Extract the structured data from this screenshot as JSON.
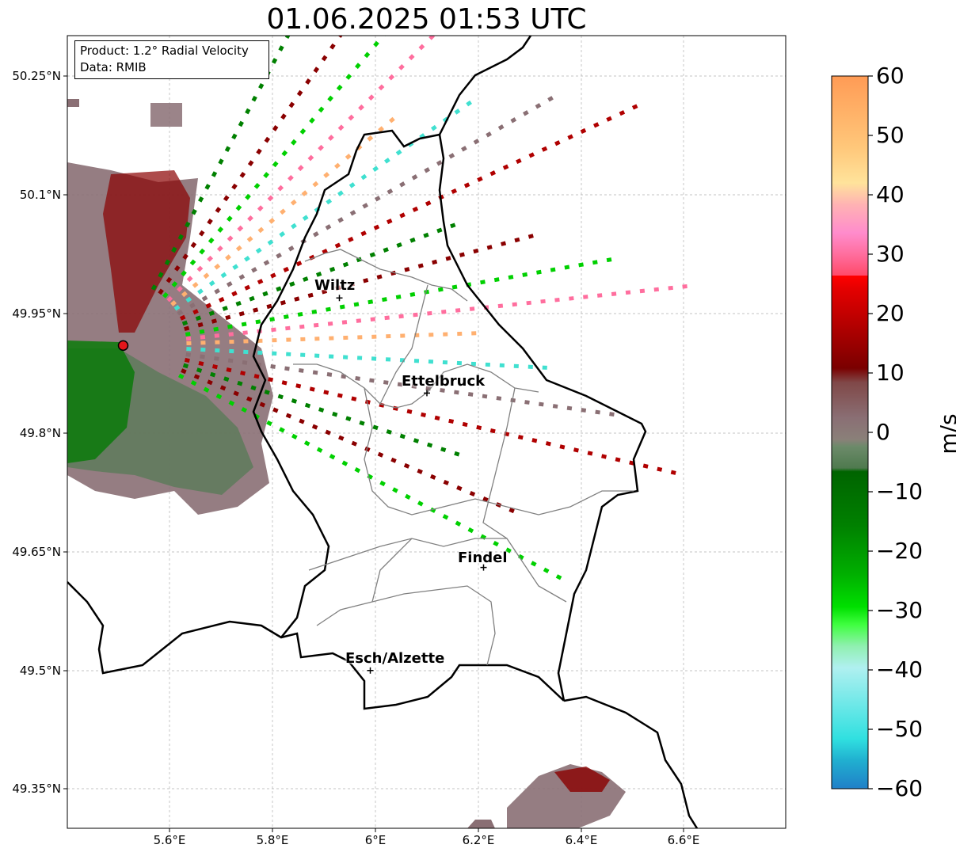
{
  "title": "01.06.2025 01:53 UTC",
  "info_box": {
    "product": "Product: 1.2° Radial Velocity",
    "source": "Data: RMIB"
  },
  "axes": {
    "lat_ticks": [
      "50.25°N",
      "50.1°N",
      "49.95°N",
      "49.8°N",
      "49.65°N",
      "49.5°N",
      "49.35°N"
    ],
    "lon_ticks": [
      "5.6°E",
      "5.8°E",
      "6°E",
      "6.2°E",
      "6.4°E",
      "6.6°E"
    ],
    "grid": true
  },
  "cities": [
    {
      "name": "Wiltz",
      "lon": 5.93,
      "lat": 49.97
    },
    {
      "name": "Ettelbruck",
      "lon": 6.1,
      "lat": 49.85
    },
    {
      "name": "Findel",
      "lon": 6.21,
      "lat": 49.63
    },
    {
      "name": "Esch/Alzette",
      "lon": 5.99,
      "lat": 49.5
    }
  ],
  "radar_site": {
    "lon": 5.51,
    "lat": 49.91
  },
  "colorbar": {
    "unit": "m/s",
    "ticks": [
      "60",
      "50",
      "40",
      "30",
      "20",
      "10",
      "0",
      "−10",
      "−20",
      "−30",
      "−40",
      "−50",
      "−60"
    ],
    "range": [
      -60,
      60
    ]
  },
  "colors": {
    "border_national": "#000000",
    "border_canton": "#808080",
    "radar_site": "#e3161b"
  }
}
